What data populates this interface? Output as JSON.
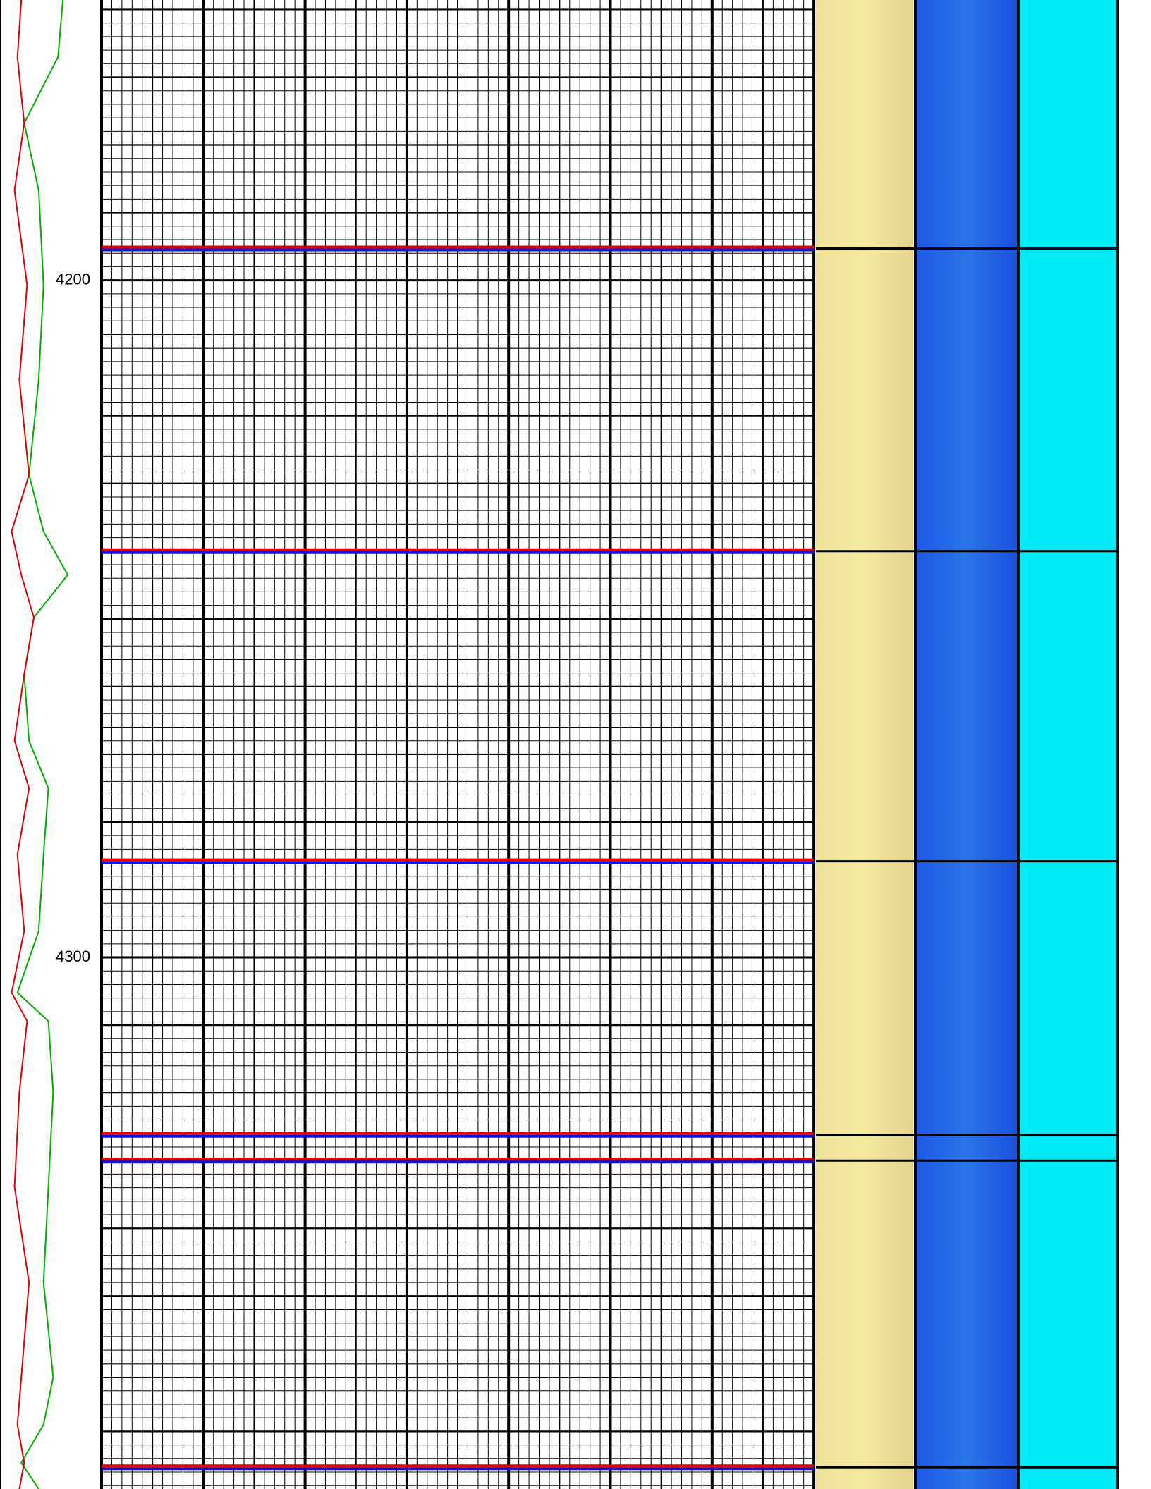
{
  "chart_data": {
    "type": "line",
    "orientation": "vertical",
    "depth_reversed": true,
    "x": [
      4158.6,
      4167.0,
      4176.8,
      4186.7,
      4200.7,
      4214.7,
      4228.7,
      4237.1,
      4243.5,
      4249.8,
      4258.2,
      4268.0,
      4275.0,
      4284.8,
      4296.1,
      4305.2,
      4309.4,
      4319.9,
      4333.9,
      4348.0,
      4362.0,
      4369.0,
      4374.6,
      4378.5
    ],
    "series": [
      {
        "color": "#00b000",
        "values": [
          65,
          60,
          25,
          40,
          45,
          40,
          30,
          45,
          70,
          35,
          25,
          30,
          50,
          45,
          40,
          18,
          50,
          55,
          50,
          45,
          55,
          45,
          22,
          40
        ]
      },
      {
        "color": "#e00000",
        "values": [
          22,
          18,
          25,
          15,
          28,
          20,
          30,
          12,
          22,
          35,
          25,
          15,
          30,
          18,
          25,
          12,
          28,
          20,
          15,
          30,
          22,
          18,
          25,
          20
        ]
      }
    ],
    "xlim": [
      0,
      105
    ],
    "ylim": [
      4158.6,
      4378.5
    ],
    "yticks": [
      4200,
      4300
    ],
    "grid": true,
    "events": [
      4195.3,
      4240.0,
      4285.8,
      4326.2,
      4330.0,
      4375.3
    ]
  }
}
